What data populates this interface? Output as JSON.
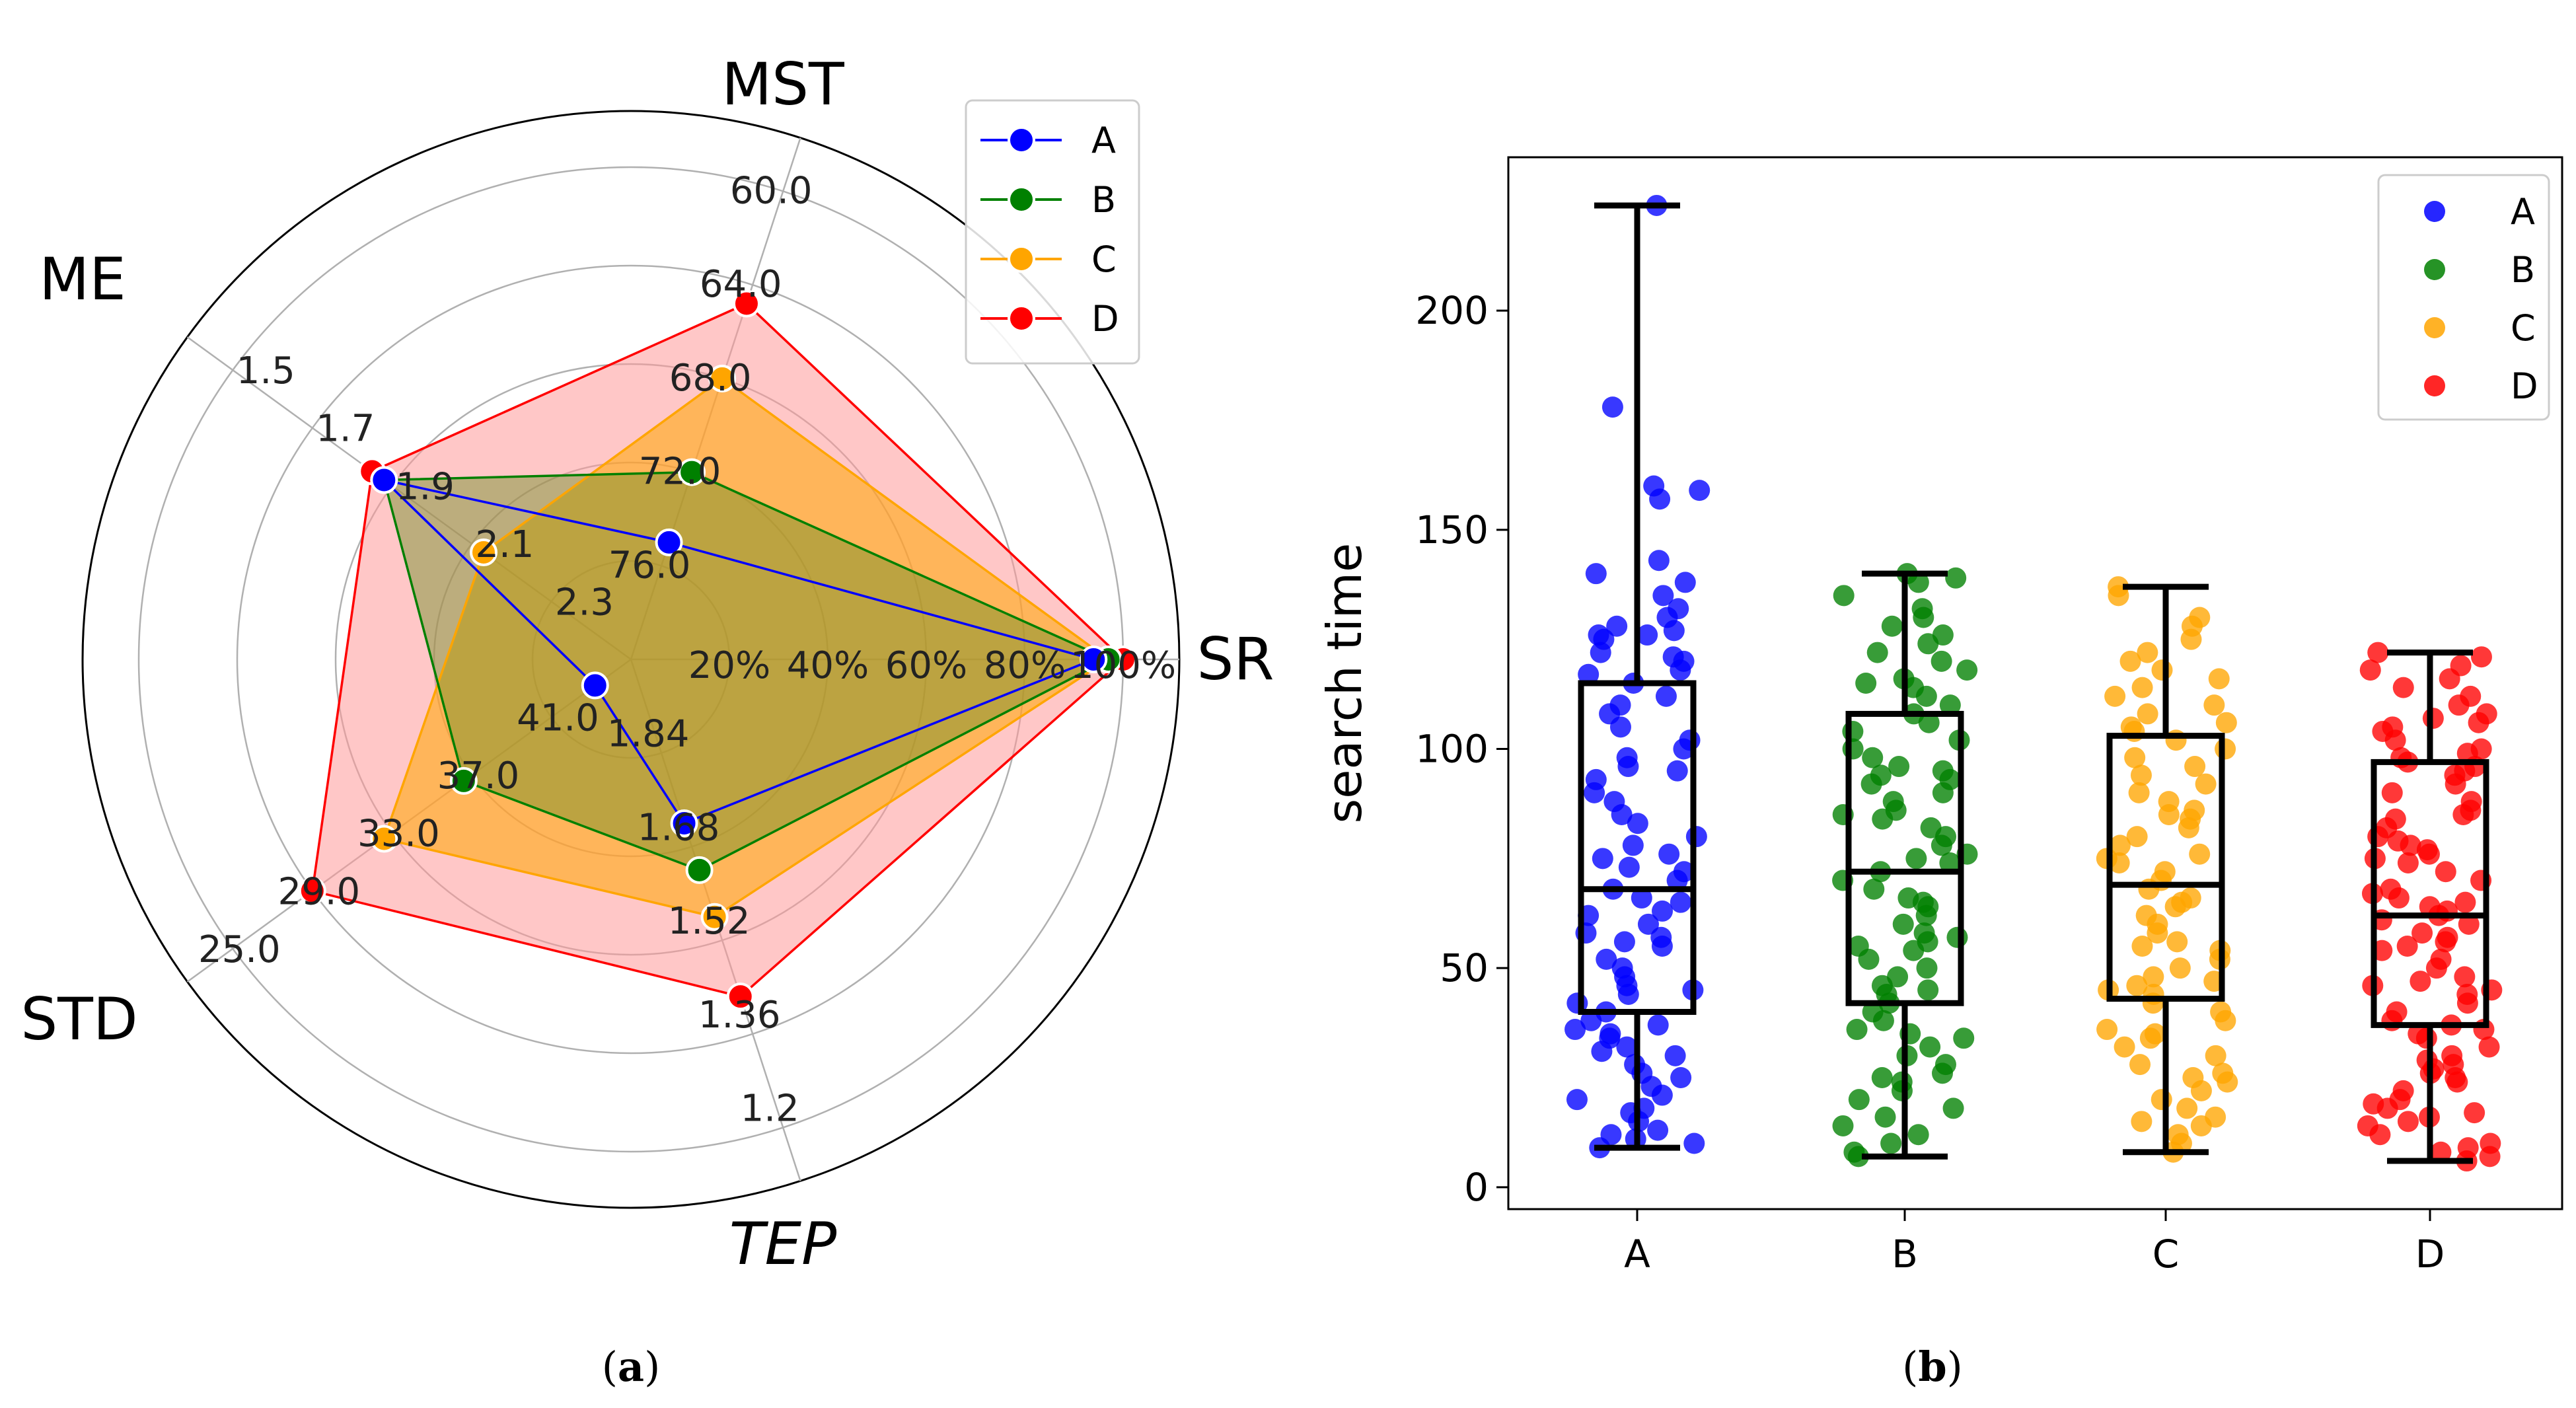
{
  "chart_data": [
    {
      "type": "radar",
      "panel_label": "a",
      "axes": [
        {
          "name": "SR",
          "ticks": [
            "20%",
            "40%",
            "60%",
            "80%",
            "100%"
          ]
        },
        {
          "name": "MST",
          "ticks": [
            "76.0",
            "72.0",
            "68.0",
            "64.0",
            "60.0"
          ]
        },
        {
          "name": "ME",
          "ticks": [
            "2.3",
            "2.1",
            "1.9",
            "1.7",
            "1.5"
          ]
        },
        {
          "name": "STD",
          "ticks": [
            "41.0",
            "37.0",
            "33.0",
            "29.0",
            "25.0"
          ]
        },
        {
          "name": "TEP",
          "ticks": [
            "1.84",
            "1.68",
            "1.52",
            "1.36",
            "1.2"
          ]
        }
      ],
      "radial_levels": [
        0.2,
        0.4,
        0.6,
        0.8,
        1.0
      ],
      "series": [
        {
          "name": "A",
          "color": "#0000ff",
          "fill": false,
          "SR": 0.94,
          "MST": 0.25,
          "ME": 0.62,
          "STD": 0.09,
          "TEP": 0.35
        },
        {
          "name": "B",
          "color": "#008000",
          "fill": true,
          "fill_color": "#6b8e23",
          "SR": 0.97,
          "MST": 0.4,
          "ME": 0.62,
          "STD": 0.42,
          "TEP": 0.45
        },
        {
          "name": "C",
          "color": "#ffa500",
          "fill": true,
          "fill_color": "#ffa500",
          "SR": 0.97,
          "MST": 0.6,
          "ME": 0.37,
          "STD": 0.62,
          "TEP": 0.55
        },
        {
          "name": "D",
          "color": "#ff0000",
          "fill": true,
          "fill_color": "#ff9999",
          "SR": 1.0,
          "MST": 0.76,
          "ME": 0.65,
          "STD": 0.8,
          "TEP": 0.72
        }
      ],
      "legend": [
        "A",
        "B",
        "C",
        "D"
      ],
      "legend_position": "top-right"
    },
    {
      "type": "box",
      "panel_label": "b",
      "ylabel": "search time",
      "categories": [
        "A",
        "B",
        "C",
        "D"
      ],
      "yticks": [
        0,
        50,
        100,
        150,
        200
      ],
      "ylim": [
        -5,
        235
      ],
      "colors": [
        "#0000ff",
        "#008000",
        "#ffa500",
        "#ff0000"
      ],
      "legend_position": "top-right",
      "series": [
        {
          "name": "A",
          "whisker_low": 9,
          "q1": 40,
          "median": 68,
          "q3": 115,
          "whisker_high": 224,
          "points": [
            224,
            178,
            160,
            159,
            157,
            143,
            140,
            138,
            135,
            132,
            130,
            128,
            127,
            126,
            126,
            125,
            122,
            121,
            120,
            118,
            117,
            115,
            112,
            110,
            108,
            105,
            102,
            100,
            98,
            96,
            95,
            93,
            90,
            88,
            85,
            83,
            80,
            78,
            76,
            75,
            73,
            72,
            70,
            68,
            66,
            65,
            63,
            62,
            60,
            58,
            57,
            56,
            55,
            52,
            50,
            48,
            46,
            45,
            44,
            42,
            40,
            38,
            37,
            36,
            35,
            34,
            32,
            31,
            30,
            28,
            26,
            25,
            23,
            21,
            20,
            18,
            17,
            15,
            13,
            12,
            11,
            10,
            9
          ]
        },
        {
          "name": "B",
          "whisker_low": 7,
          "q1": 42,
          "median": 72,
          "q3": 108,
          "whisker_high": 140,
          "points": [
            140,
            139,
            138,
            135,
            132,
            130,
            128,
            126,
            124,
            122,
            120,
            118,
            116,
            115,
            114,
            112,
            110,
            108,
            106,
            104,
            102,
            100,
            98,
            96,
            95,
            94,
            93,
            92,
            90,
            88,
            86,
            85,
            84,
            82,
            80,
            78,
            76,
            75,
            74,
            72,
            70,
            68,
            66,
            65,
            64,
            62,
            60,
            58,
            57,
            56,
            55,
            54,
            52,
            50,
            48,
            46,
            45,
            44,
            42,
            40,
            38,
            36,
            35,
            34,
            32,
            30,
            28,
            26,
            25,
            24,
            22,
            20,
            18,
            16,
            14,
            12,
            10,
            8,
            7
          ]
        },
        {
          "name": "C",
          "whisker_low": 8,
          "q1": 43,
          "median": 69,
          "q3": 103,
          "whisker_high": 137,
          "points": [
            137,
            135,
            130,
            128,
            125,
            122,
            120,
            118,
            116,
            114,
            112,
            110,
            108,
            106,
            105,
            104,
            102,
            100,
            98,
            96,
            94,
            92,
            90,
            88,
            86,
            85,
            84,
            82,
            80,
            78,
            76,
            75,
            74,
            72,
            70,
            68,
            66,
            65,
            64,
            62,
            60,
            58,
            56,
            55,
            54,
            52,
            50,
            48,
            47,
            46,
            45,
            44,
            42,
            40,
            38,
            36,
            35,
            34,
            32,
            30,
            28,
            26,
            25,
            24,
            22,
            20,
            18,
            16,
            15,
            14,
            12,
            10,
            8
          ]
        },
        {
          "name": "D",
          "whisker_low": 6,
          "q1": 37,
          "median": 62,
          "q3": 97,
          "whisker_high": 122,
          "points": [
            122,
            121,
            119,
            118,
            116,
            114,
            112,
            110,
            108,
            107,
            106,
            105,
            104,
            102,
            100,
            99,
            98,
            97,
            96,
            95,
            94,
            92,
            90,
            88,
            86,
            85,
            84,
            82,
            80,
            79,
            78,
            77,
            76,
            75,
            74,
            72,
            70,
            68,
            67,
            66,
            65,
            64,
            63,
            62,
            61,
            60,
            58,
            57,
            56,
            55,
            54,
            52,
            50,
            48,
            47,
            46,
            45,
            44,
            42,
            40,
            38,
            37,
            36,
            35,
            34,
            32,
            30,
            29,
            28,
            27,
            26,
            25,
            24,
            22,
            20,
            19,
            18,
            17,
            16,
            15,
            14,
            12,
            10,
            9,
            8,
            7,
            6
          ]
        }
      ]
    }
  ],
  "captions": {
    "a": "a",
    "b": "b"
  }
}
